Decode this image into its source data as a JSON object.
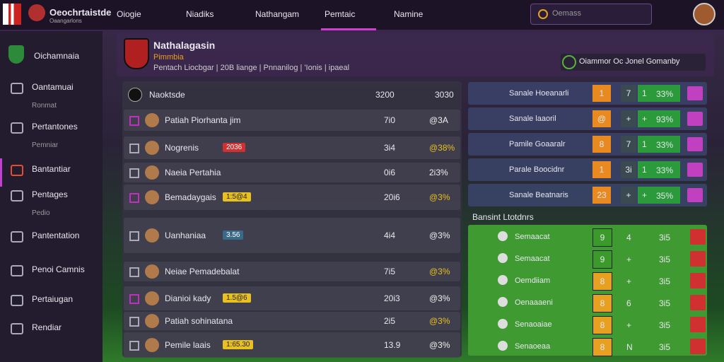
{
  "topbar": {
    "brand": "Oeochrtaistde",
    "brand_sub": "Oaangarlons",
    "nav": [
      "Oiogie",
      "Niadiks",
      "Nathangam",
      "Pemtaic",
      "Namine"
    ],
    "search": "Oemass"
  },
  "sidebar": {
    "title": "Oichamnaia",
    "items": [
      "Oantamuai",
      "Ronmat",
      "Pertantones",
      "Pemniar",
      "Bantantiar",
      "Pentages",
      "Pedio",
      "Pantentation",
      "Penoi Camnis",
      "Pertaiugan",
      "Rendiar"
    ]
  },
  "header": {
    "title": "Nathalagasin",
    "subtitle": "Pimmbia",
    "meta": "Pentach Liocbgar | 20B liange | Pnnanilog | 'Ionis | ipaeal",
    "dropdown": "Oiammor Oc Jonel Gomanby"
  },
  "table": {
    "title": "Naoktsde",
    "col1": "3200",
    "col2": "3030",
    "rows": [
      {
        "name": "Patiah Piorhanta jim",
        "v1": "7i0",
        "v2": "@3A"
      },
      {
        "name": "Nogrenis",
        "badge": "2036",
        "v1": "3i4",
        "v2": "@38%"
      },
      {
        "name": "Naeia Pertahia",
        "v1": "0i6",
        "v2": "2i3%"
      },
      {
        "name": "Bemadaygais",
        "badge": "1:5@4",
        "v1": "20i6",
        "v2": "@3%"
      },
      {
        "name": "Uanhaniaa",
        "badge": "3.56",
        "v1": "4i4",
        "v2": "@3%"
      },
      {
        "name": "Neiae Pemadebalat",
        "v1": "7i5",
        "v2": "@3%"
      },
      {
        "name": "Dianioi kady",
        "badge": "1.5@6",
        "v1": "20i3",
        "v2": "@3%"
      },
      {
        "name": "Patiah sohinatana",
        "v1": "2i5",
        "v2": "@3%"
      },
      {
        "name": "Pemile laais",
        "badge": "1:65.30",
        "v1": "13.9",
        "v2": "@3%"
      }
    ]
  },
  "standings": {
    "rows": [
      {
        "name": "Sanale Hoeanarli",
        "a": "1",
        "b": "7",
        "c": "1",
        "d": "33%"
      },
      {
        "name": "Sanale laaoril",
        "a": "@",
        "b": "+",
        "c": "+",
        "d": "93%"
      },
      {
        "name": "Pamile Goaaralr",
        "a": "8",
        "b": "7",
        "c": "1",
        "d": "33%"
      },
      {
        "name": "Parale Boocidnr",
        "a": "1",
        "b": "3i",
        "c": "1",
        "d": "33%"
      },
      {
        "name": "Sanale Beatnaris",
        "a": "23",
        "b": "+",
        "c": "+",
        "d": "35%"
      }
    ]
  },
  "results": {
    "title": "Bansint Ltotdnrs",
    "rows": [
      {
        "name": "Semaacat",
        "a": "9",
        "b": "4",
        "c": "3i5"
      },
      {
        "name": "Semaacat",
        "a": "9",
        "b": "+",
        "c": "3i5"
      },
      {
        "name": "Oemdiiam",
        "a": "8",
        "b": "+",
        "c": "3i5"
      },
      {
        "name": "Oenaaaeni",
        "a": "8",
        "b": "6",
        "c": "3i5"
      },
      {
        "name": "Senaoaiae",
        "a": "8",
        "b": "+",
        "c": "3i5"
      },
      {
        "name": "Senaoeaa",
        "a": "8",
        "b": "N",
        "c": "3i5"
      }
    ]
  }
}
